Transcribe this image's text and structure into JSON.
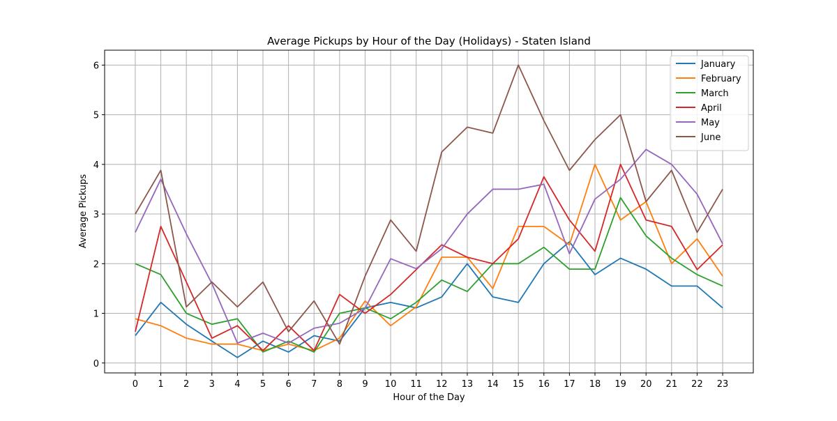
{
  "chart_data": {
    "type": "line",
    "title": "Average Pickups by Hour of the Day (Holidays) - Staten Island",
    "xlabel": "Hour of the Day",
    "ylabel": "Average Pickups",
    "x": [
      0,
      1,
      2,
      3,
      4,
      5,
      6,
      7,
      8,
      9,
      10,
      11,
      12,
      13,
      14,
      15,
      16,
      17,
      18,
      19,
      20,
      21,
      22,
      23
    ],
    "xlim": [
      -1.2,
      24.2
    ],
    "ylim": [
      -0.2,
      6.3
    ],
    "yticks": [
      0,
      1,
      2,
      3,
      4,
      5,
      6
    ],
    "grid": true,
    "legend_position": "top-right",
    "series": [
      {
        "name": "January",
        "color": "#1f77b4",
        "values": [
          0.55,
          1.22,
          0.78,
          0.44,
          0.11,
          0.44,
          0.22,
          0.55,
          0.44,
          1.11,
          1.22,
          1.11,
          1.33,
          2.0,
          1.33,
          1.22,
          2.0,
          2.44,
          1.78,
          2.11,
          1.89,
          1.55,
          1.55,
          1.11
        ]
      },
      {
        "name": "February",
        "color": "#ff7f0e",
        "values": [
          0.89,
          0.75,
          0.5,
          0.38,
          0.38,
          0.25,
          0.38,
          0.25,
          0.5,
          1.25,
          0.75,
          1.13,
          2.13,
          2.13,
          1.5,
          2.75,
          2.75,
          2.38,
          4.0,
          2.88,
          3.25,
          2.0,
          2.5,
          1.75
        ]
      },
      {
        "name": "March",
        "color": "#2ca02c",
        "values": [
          2.0,
          1.78,
          1.0,
          0.78,
          0.89,
          0.22,
          0.44,
          0.22,
          1.0,
          1.11,
          0.89,
          1.22,
          1.67,
          1.44,
          2.0,
          2.0,
          2.33,
          1.89,
          1.89,
          3.33,
          2.56,
          2.11,
          1.78,
          1.55
        ]
      },
      {
        "name": "April",
        "color": "#d62728",
        "values": [
          0.63,
          2.75,
          1.63,
          0.5,
          0.75,
          0.25,
          0.75,
          0.25,
          1.38,
          1.0,
          1.38,
          1.88,
          2.38,
          2.13,
          2.0,
          2.5,
          3.75,
          2.88,
          2.25,
          4.0,
          2.88,
          2.75,
          1.88,
          2.38
        ]
      },
      {
        "name": "May",
        "color": "#9467bd",
        "values": [
          2.63,
          3.7,
          2.6,
          1.6,
          0.4,
          0.6,
          0.4,
          0.7,
          0.8,
          1.1,
          2.1,
          1.9,
          2.3,
          3.0,
          3.5,
          3.5,
          3.6,
          2.2,
          3.3,
          3.7,
          4.3,
          4.0,
          3.4,
          2.4
        ]
      },
      {
        "name": "June",
        "color": "#8c564b",
        "values": [
          3.0,
          3.88,
          1.13,
          1.63,
          1.13,
          1.63,
          0.63,
          1.25,
          0.38,
          1.75,
          2.88,
          2.25,
          4.25,
          4.75,
          4.63,
          6.0,
          4.88,
          3.88,
          4.5,
          5.0,
          3.25,
          3.88,
          2.63,
          3.5
        ]
      }
    ]
  }
}
